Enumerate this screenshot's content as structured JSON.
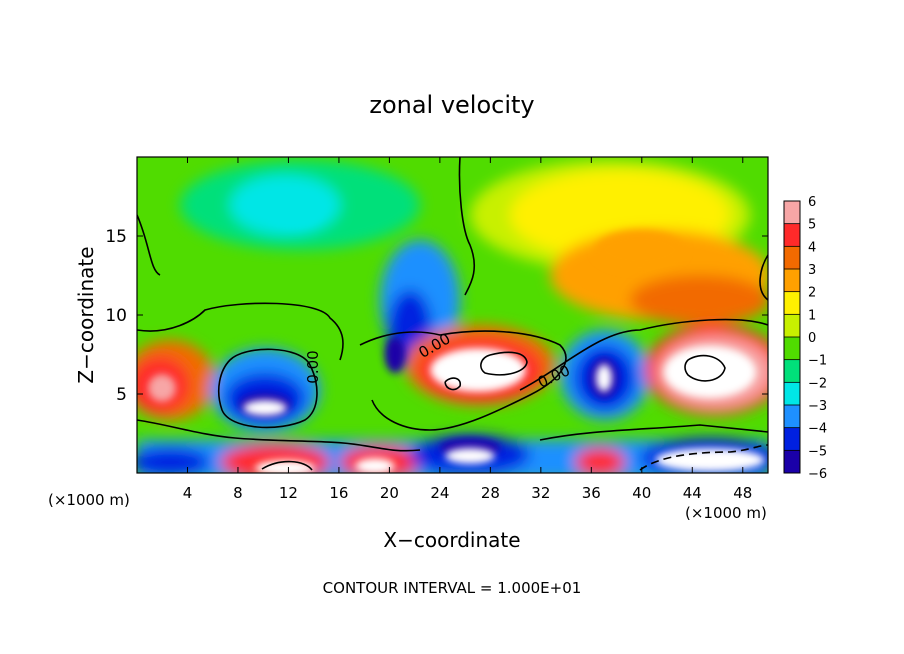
{
  "chart_data": {
    "type": "heatmap",
    "title": "zonal velocity",
    "xlabel": "X−coordinate",
    "ylabel": "Z−coordinate",
    "x_unit_left": "(×1000 m)",
    "x_unit_right": "(×1000 m)",
    "xlim": [
      0,
      50
    ],
    "ylim": [
      0,
      20
    ],
    "x_ticks": [
      4,
      8,
      12,
      16,
      20,
      24,
      28,
      32,
      36,
      40,
      44,
      48
    ],
    "y_ticks": [
      5,
      10,
      15
    ],
    "footer": "CONTOUR INTERVAL = 1.000E+01",
    "contour_labels": [
      "0.00",
      "0.00",
      "0.00"
    ],
    "colorbar": {
      "levels": [
        6,
        5,
        4,
        3,
        2,
        1,
        0,
        -1,
        -2,
        -3,
        -4,
        -5,
        -6
      ],
      "colors": [
        "#f7a6a6",
        "#ff2a2a",
        "#f26a00",
        "#ffa000",
        "#fff000",
        "#c8f000",
        "#50dc00",
        "#00e07a",
        "#00e6e6",
        "#1e90ff",
        "#0020e0",
        "#1a00a8",
        "#7a00b8"
      ]
    }
  }
}
